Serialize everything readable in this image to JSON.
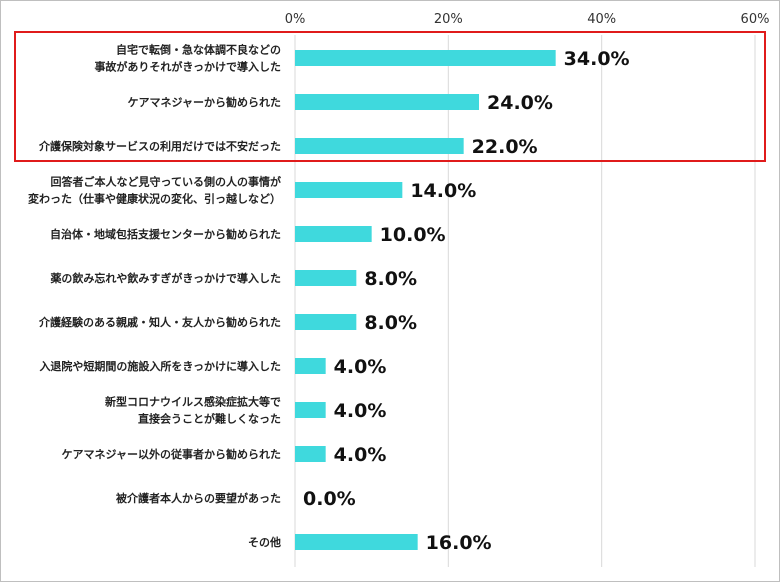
{
  "chart_data": {
    "type": "bar",
    "orientation": "horizontal",
    "categories": [
      [
        "自宅で転倒・急な体調不良などの",
        "事故がありそれがきっかけで導入した"
      ],
      [
        "ケアマネジャーから勧められた"
      ],
      [
        "介護保険対象サービスの利用だけでは不安だった"
      ],
      [
        "回答者ご本人など見守っている側の人の事情が",
        "変わった（仕事や健康状況の変化、引っ越しなど）"
      ],
      [
        "自治体・地域包括支援センターから勧められた"
      ],
      [
        "薬の飲み忘れや飲みすぎがきっかけで導入した"
      ],
      [
        "介護経験のある親戚・知人・友人から勧められた"
      ],
      [
        "入退院や短期間の施設入所をきっかけに導入した"
      ],
      [
        "新型コロナウイルス感染症拡大等で",
        "直接会うことが難しくなった"
      ],
      [
        "ケアマネジャー以外の従事者から勧められた"
      ],
      [
        "被介護者本人からの要望があった"
      ],
      [
        "その他"
      ]
    ],
    "values": [
      34.0,
      24.0,
      22.0,
      14.0,
      10.0,
      8.0,
      8.0,
      4.0,
      4.0,
      4.0,
      0.0,
      16.0
    ],
    "data_labels": [
      "34.0%",
      "24.0%",
      "22.0%",
      "14.0%",
      "10.0%",
      "8.0%",
      "8.0%",
      "4.0%",
      "4.0%",
      "4.0%",
      "0.0%",
      "16.0%"
    ],
    "x_ticks": [
      "0%",
      "20%",
      "40%",
      "60%"
    ],
    "xlim": [
      0,
      60
    ],
    "grid": true,
    "highlighted_categories": [
      0,
      1,
      2
    ],
    "colors": {
      "bar": "#3fd9dd",
      "highlight_border": "#e01b1b",
      "grid": "#d9d9d9"
    }
  }
}
